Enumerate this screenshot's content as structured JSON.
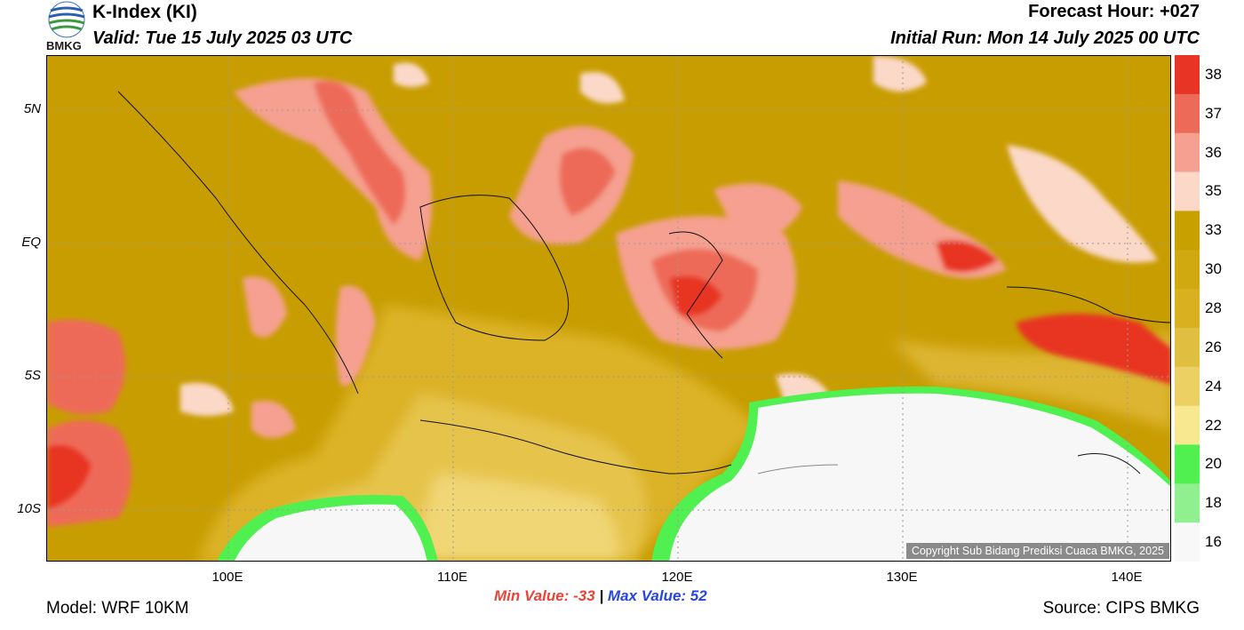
{
  "header": {
    "title": "K-Index (KI)",
    "valid": "Valid: Tue 15 July 2025 03 UTC",
    "forecast_hour": "Forecast Hour: +027",
    "initial_run": "Initial Run: Mon 14 July 2025 00 UTC"
  },
  "logo": {
    "text": "BMKG"
  },
  "axes": {
    "y_ticks": [
      "5N",
      "EQ",
      "5S",
      "10S"
    ],
    "x_ticks": [
      "100E",
      "110E",
      "120E",
      "130E",
      "140E"
    ]
  },
  "colorbar": {
    "labels": [
      "38",
      "37",
      "36",
      "35",
      "33",
      "30",
      "28",
      "26",
      "24",
      "22",
      "20",
      "18",
      "16"
    ],
    "colors": [
      "#e83424",
      "#ee6a58",
      "#f5a090",
      "#fcd8c8",
      "#c8a000",
      "#d0a810",
      "#d8b020",
      "#e0be40",
      "#ecd064",
      "#f8e890",
      "#50f050",
      "#90f090",
      "#f8f8f8"
    ]
  },
  "copyright": "Copyright Sub Bidang Prediksi Cuaca BMKG, 2025",
  "stats": {
    "min_label": "Min Value: -33",
    "separator": "|",
    "max_label": "Max Value:  52"
  },
  "footer": {
    "model": "Model: WRF 10KM",
    "source": "Source: CIPS BMKG"
  }
}
